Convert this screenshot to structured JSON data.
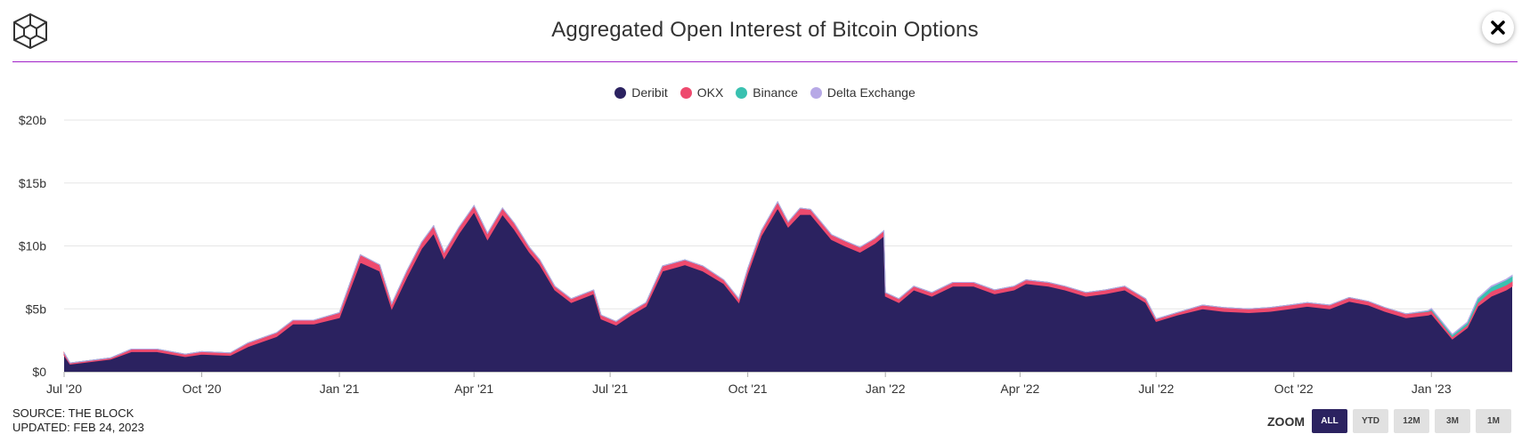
{
  "header": {
    "title": "Aggregated Open Interest of Bitcoin Options"
  },
  "legend": [
    {
      "label": "Deribit",
      "color": "#2b2260"
    },
    {
      "label": "OKX",
      "color": "#ee4a6e"
    },
    {
      "label": "Binance",
      "color": "#39c1b0"
    },
    {
      "label": "Delta Exchange",
      "color": "#b7a9e6"
    }
  ],
  "footer": {
    "source": "SOURCE: THE BLOCK",
    "updated": "UPDATED: FEB 24, 2023"
  },
  "zoom": {
    "label": "ZOOM",
    "buttons": [
      {
        "label": "ALL",
        "active": true
      },
      {
        "label": "YTD",
        "active": false
      },
      {
        "label": "12M",
        "active": false
      },
      {
        "label": "3M",
        "active": false
      },
      {
        "label": "1M",
        "active": false
      }
    ]
  },
  "chart_data": {
    "type": "area",
    "stacked": true,
    "title": "Aggregated Open Interest of Bitcoin Options",
    "ylabel": "",
    "xlabel": "",
    "ylim": [
      0,
      20
    ],
    "unit": "billion USD",
    "yticks": [
      {
        "value": 0,
        "label": "$0"
      },
      {
        "value": 5,
        "label": "$5b"
      },
      {
        "value": 10,
        "label": "$10b"
      },
      {
        "value": 15,
        "label": "$15b"
      },
      {
        "value": 20,
        "label": "$20b"
      }
    ],
    "xlim": [
      "2020-07-01",
      "2023-02-24"
    ],
    "xticks": [
      {
        "date": "2020-07-01",
        "label": "Jul '20"
      },
      {
        "date": "2020-10-01",
        "label": "Oct '20"
      },
      {
        "date": "2021-01-01",
        "label": "Jan '21"
      },
      {
        "date": "2021-04-01",
        "label": "Apr '21"
      },
      {
        "date": "2021-07-01",
        "label": "Jul '21"
      },
      {
        "date": "2021-10-01",
        "label": "Oct '21"
      },
      {
        "date": "2022-01-01",
        "label": "Jan '22"
      },
      {
        "date": "2022-04-01",
        "label": "Apr '22"
      },
      {
        "date": "2022-07-01",
        "label": "Jul '22"
      },
      {
        "date": "2022-10-01",
        "label": "Oct '22"
      },
      {
        "date": "2023-01-01",
        "label": "Jan '23"
      }
    ],
    "x": [
      "2020-07-01",
      "2020-07-05",
      "2020-08-01",
      "2020-08-15",
      "2020-09-01",
      "2020-09-20",
      "2020-10-01",
      "2020-10-20",
      "2020-11-01",
      "2020-11-20",
      "2020-12-01",
      "2020-12-15",
      "2021-01-01",
      "2021-01-08",
      "2021-01-15",
      "2021-01-28",
      "2021-02-05",
      "2021-02-15",
      "2021-02-25",
      "2021-03-05",
      "2021-03-12",
      "2021-03-22",
      "2021-04-01",
      "2021-04-10",
      "2021-04-20",
      "2021-04-28",
      "2021-05-08",
      "2021-05-15",
      "2021-05-25",
      "2021-06-05",
      "2021-06-20",
      "2021-06-25",
      "2021-07-05",
      "2021-07-15",
      "2021-07-25",
      "2021-08-05",
      "2021-08-20",
      "2021-09-01",
      "2021-09-15",
      "2021-09-25",
      "2021-10-01",
      "2021-10-10",
      "2021-10-21",
      "2021-10-28",
      "2021-11-05",
      "2021-11-12",
      "2021-11-26",
      "2021-12-05",
      "2021-12-15",
      "2021-12-25",
      "2021-12-31",
      "2022-01-01",
      "2022-01-10",
      "2022-01-20",
      "2022-02-01",
      "2022-02-15",
      "2022-03-01",
      "2022-03-15",
      "2022-03-28",
      "2022-04-05",
      "2022-04-20",
      "2022-05-01",
      "2022-05-15",
      "2022-05-28",
      "2022-06-10",
      "2022-06-24",
      "2022-07-01",
      "2022-07-15",
      "2022-08-01",
      "2022-08-15",
      "2022-09-01",
      "2022-09-15",
      "2022-09-28",
      "2022-10-10",
      "2022-10-25",
      "2022-11-07",
      "2022-11-20",
      "2022-12-01",
      "2022-12-15",
      "2022-12-30",
      "2023-01-01",
      "2023-01-15",
      "2023-01-25",
      "2023-02-01",
      "2023-02-10",
      "2023-02-20",
      "2023-02-24"
    ],
    "series": [
      {
        "name": "Deribit",
        "values": [
          1.3,
          0.6,
          1.0,
          1.6,
          1.6,
          1.2,
          1.4,
          1.3,
          2.0,
          2.8,
          3.8,
          3.8,
          4.3,
          6.5,
          8.7,
          8.0,
          5.0,
          7.5,
          9.8,
          11.0,
          9.0,
          11.0,
          12.7,
          10.5,
          12.5,
          11.3,
          9.5,
          8.5,
          6.5,
          5.5,
          6.2,
          4.2,
          3.7,
          4.5,
          5.2,
          8.0,
          8.5,
          8.0,
          7.0,
          5.5,
          7.8,
          10.8,
          13.0,
          11.5,
          12.5,
          12.5,
          10.5,
          10.0,
          9.5,
          10.2,
          10.8,
          6.0,
          5.5,
          6.5,
          6.0,
          6.8,
          6.8,
          6.2,
          6.5,
          7.0,
          6.8,
          6.5,
          6.0,
          6.2,
          6.5,
          5.5,
          4.0,
          4.5,
          5.0,
          4.8,
          4.7,
          4.8,
          5.0,
          5.2,
          5.0,
          5.6,
          5.3,
          4.8,
          4.3,
          4.5,
          4.6,
          2.6,
          3.5,
          5.2,
          6.0,
          6.5,
          6.8
        ]
      },
      {
        "name": "OKX",
        "values": [
          0.2,
          0.1,
          0.1,
          0.2,
          0.2,
          0.2,
          0.2,
          0.2,
          0.3,
          0.3,
          0.3,
          0.3,
          0.4,
          0.5,
          0.6,
          0.5,
          0.4,
          0.5,
          0.5,
          0.6,
          0.5,
          0.5,
          0.5,
          0.5,
          0.5,
          0.5,
          0.4,
          0.4,
          0.3,
          0.3,
          0.3,
          0.3,
          0.3,
          0.3,
          0.3,
          0.4,
          0.4,
          0.4,
          0.3,
          0.3,
          0.4,
          0.4,
          0.5,
          0.4,
          0.5,
          0.4,
          0.4,
          0.4,
          0.4,
          0.4,
          0.4,
          0.3,
          0.3,
          0.3,
          0.3,
          0.3,
          0.3,
          0.3,
          0.3,
          0.3,
          0.3,
          0.3,
          0.3,
          0.3,
          0.3,
          0.3,
          0.2,
          0.2,
          0.3,
          0.3,
          0.3,
          0.3,
          0.3,
          0.3,
          0.3,
          0.3,
          0.3,
          0.3,
          0.3,
          0.3,
          0.3,
          0.2,
          0.2,
          0.3,
          0.4,
          0.4,
          0.4
        ]
      },
      {
        "name": "Binance",
        "values": [
          0,
          0,
          0,
          0,
          0,
          0,
          0,
          0,
          0,
          0,
          0,
          0,
          0,
          0,
          0,
          0,
          0,
          0,
          0,
          0,
          0,
          0,
          0,
          0,
          0,
          0,
          0,
          0,
          0,
          0,
          0,
          0,
          0,
          0,
          0,
          0,
          0,
          0,
          0,
          0,
          0,
          0,
          0,
          0,
          0,
          0,
          0,
          0,
          0,
          0,
          0,
          0,
          0,
          0,
          0,
          0,
          0,
          0,
          0,
          0,
          0,
          0,
          0,
          0,
          0,
          0,
          0,
          0,
          0,
          0,
          0,
          0,
          0,
          0,
          0,
          0,
          0,
          0,
          0,
          0.05,
          0.1,
          0.15,
          0.2,
          0.3,
          0.35,
          0.4,
          0.4
        ]
      },
      {
        "name": "Delta Exchange",
        "values": [
          0,
          0,
          0,
          0,
          0,
          0,
          0,
          0,
          0,
          0,
          0,
          0,
          0,
          0,
          0,
          0,
          0,
          0,
          0,
          0,
          0,
          0,
          0,
          0,
          0,
          0,
          0,
          0,
          0,
          0,
          0,
          0,
          0,
          0,
          0,
          0,
          0,
          0,
          0,
          0,
          0,
          0,
          0,
          0,
          0,
          0,
          0,
          0,
          0,
          0,
          0,
          0,
          0,
          0,
          0,
          0,
          0,
          0,
          0,
          0,
          0,
          0,
          0,
          0,
          0,
          0,
          0,
          0,
          0,
          0,
          0,
          0,
          0,
          0,
          0,
          0,
          0,
          0,
          0,
          0.02,
          0.03,
          0.03,
          0.05,
          0.05,
          0.06,
          0.06,
          0.06
        ]
      }
    ]
  }
}
